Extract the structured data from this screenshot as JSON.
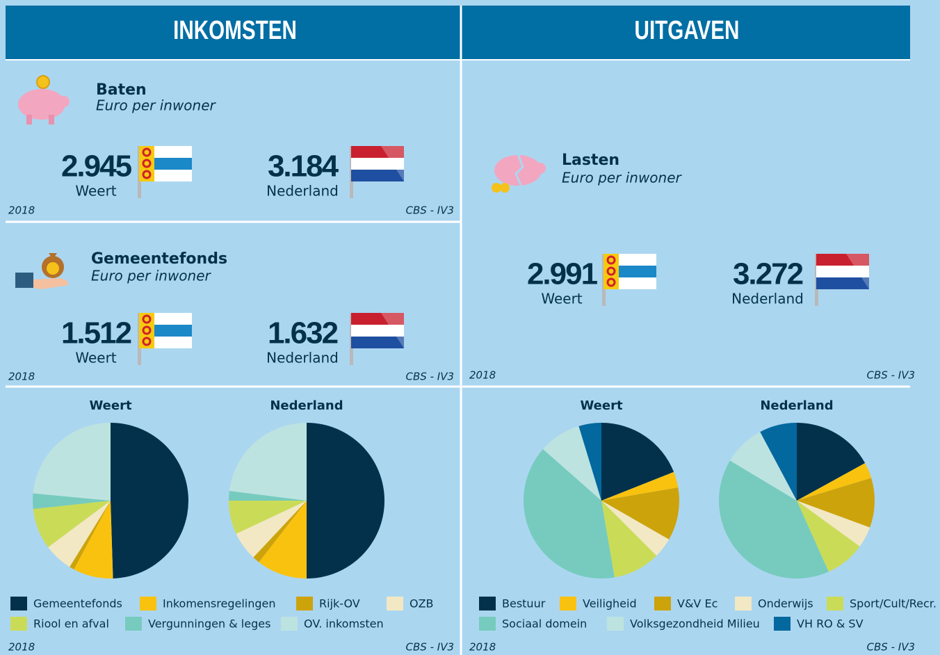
{
  "header": {
    "left": "INKOMSTEN",
    "right": "UITGAVEN"
  },
  "panels": [
    {
      "title": "Baten",
      "subtitle": "Euro per inwoner",
      "items": [
        {
          "value": "2.945",
          "place": "Weert"
        },
        {
          "value": "3.184",
          "place": "Nederland"
        }
      ],
      "year": "2018",
      "source": "CBS - IV3"
    },
    {
      "title": "Gemeentefonds",
      "subtitle": "Euro per inwoner",
      "items": [
        {
          "value": "1.512",
          "place": "Weert"
        },
        {
          "value": "1.632",
          "place": "Nederland"
        }
      ],
      "year": "2018",
      "source": "CBS - IV3"
    },
    {
      "title": "Lasten",
      "subtitle": "Euro per inwoner",
      "items": [
        {
          "value": "2.991",
          "place": "Weert"
        },
        {
          "value": "3.272",
          "place": "Nederland"
        }
      ],
      "year": "2018",
      "source": "CBS - IV3"
    }
  ],
  "legends": [
    {
      "labels": [
        "Gemeentefonds",
        "Inkomensregelingen",
        "Rijk-OV",
        "OZB",
        "Riool en afval",
        "Vergunningen & leges",
        "OV. inkomsten"
      ],
      "colors": [
        "#03314b",
        "#f9c20f",
        "#cda30b",
        "#f3e8c4",
        "#cadc57",
        "#76cbbe",
        "#bde3e0"
      ]
    },
    {
      "labels": [
        "Bestuur",
        "Veiligheid",
        "V&V Ec",
        "Onderwijs",
        "Sport/Cult/Recr.",
        "Sociaal domein",
        "Volksgezondheid Milieu",
        "VH RO & SV"
      ],
      "colors": [
        "#03314b",
        "#f9c20f",
        "#cda30b",
        "#f3e8c4",
        "#cadc57",
        "#76cbbe",
        "#bde3e0",
        "#03689e"
      ]
    }
  ],
  "footers": [
    {
      "year": "2018",
      "source": "CBS - IV3"
    },
    {
      "year": "2018",
      "source": "CBS - IV3"
    }
  ],
  "chart_data": [
    {
      "type": "pie",
      "title": "Weert",
      "values": [
        49.5,
        8.3,
        1,
        6,
        8.5,
        3.2,
        23.5
      ]
    },
    {
      "type": "pie",
      "title": "Nederland",
      "values": [
        50,
        10.5,
        1.5,
        6,
        7,
        2,
        23
      ]
    },
    {
      "type": "pie",
      "title": "Weert",
      "values": [
        19,
        3.3,
        11,
        4.2,
        9.8,
        39.2,
        8.8,
        4.7
      ]
    },
    {
      "type": "pie",
      "title": "Nederland",
      "values": [
        17,
        3.3,
        10.3,
        4.4,
        8.3,
        40.3,
        8.6,
        7.8
      ]
    }
  ]
}
